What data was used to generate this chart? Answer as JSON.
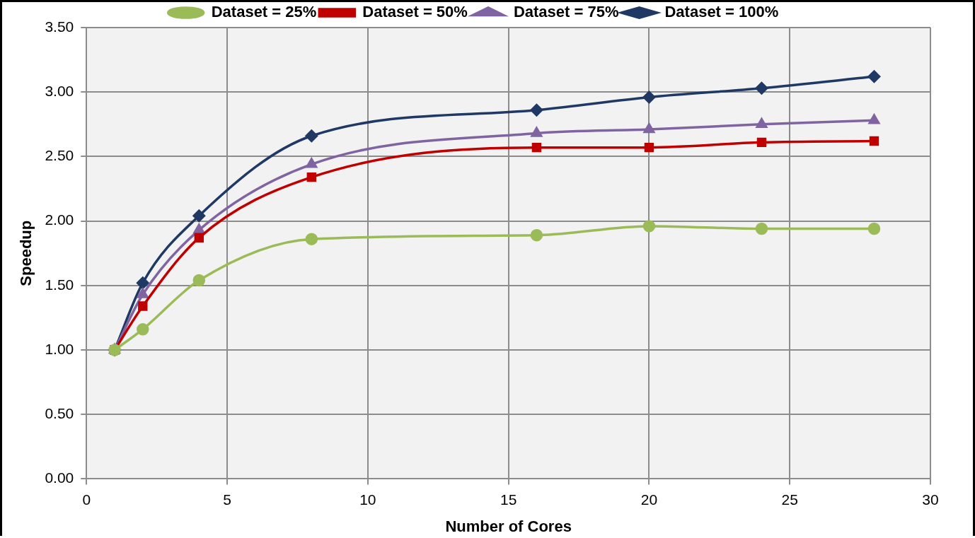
{
  "chart_data": {
    "type": "line",
    "xlabel": "Number of Cores",
    "ylabel": "Speedup",
    "xlim": [
      0,
      30
    ],
    "xticks": [
      0,
      5,
      10,
      15,
      20,
      25,
      30
    ],
    "ylim": [
      0,
      3.5
    ],
    "yticks": [
      {
        "value": 0,
        "label": "0.00"
      },
      {
        "value": 0.5,
        "label": "0.50"
      },
      {
        "value": 1,
        "label": "1.00"
      },
      {
        "value": 1.5,
        "label": "1.50"
      },
      {
        "value": 2,
        "label": "2.00"
      },
      {
        "value": 2.5,
        "label": "2.50"
      },
      {
        "value": 3,
        "label": "3.00"
      },
      {
        "value": 3.5,
        "label": "3.50"
      }
    ],
    "x": [
      1,
      2,
      4,
      8,
      16,
      20,
      24,
      28
    ],
    "grid": true,
    "legend": "top",
    "line_style": "solid",
    "series": [
      {
        "name": "Dataset = 25%",
        "color": "#9bbb59",
        "marker": "circle",
        "values": [
          1.0,
          1.16,
          1.54,
          1.86,
          1.89,
          1.96,
          1.94,
          1.94
        ]
      },
      {
        "name": "Dataset = 50%",
        "color": "#c00000",
        "marker": "square",
        "values": [
          1.0,
          1.34,
          1.87,
          2.34,
          2.57,
          2.57,
          2.61,
          2.62
        ]
      },
      {
        "name": "Dataset = 75%",
        "color": "#8064a2",
        "marker": "triangle",
        "values": [
          1.0,
          1.43,
          1.93,
          2.44,
          2.68,
          2.71,
          2.75,
          2.78
        ]
      },
      {
        "name": "Dataset = 100%",
        "color": "#1f3864",
        "marker": "diamond",
        "values": [
          1.0,
          1.52,
          2.04,
          2.66,
          2.86,
          2.96,
          3.03,
          3.12
        ]
      }
    ]
  }
}
